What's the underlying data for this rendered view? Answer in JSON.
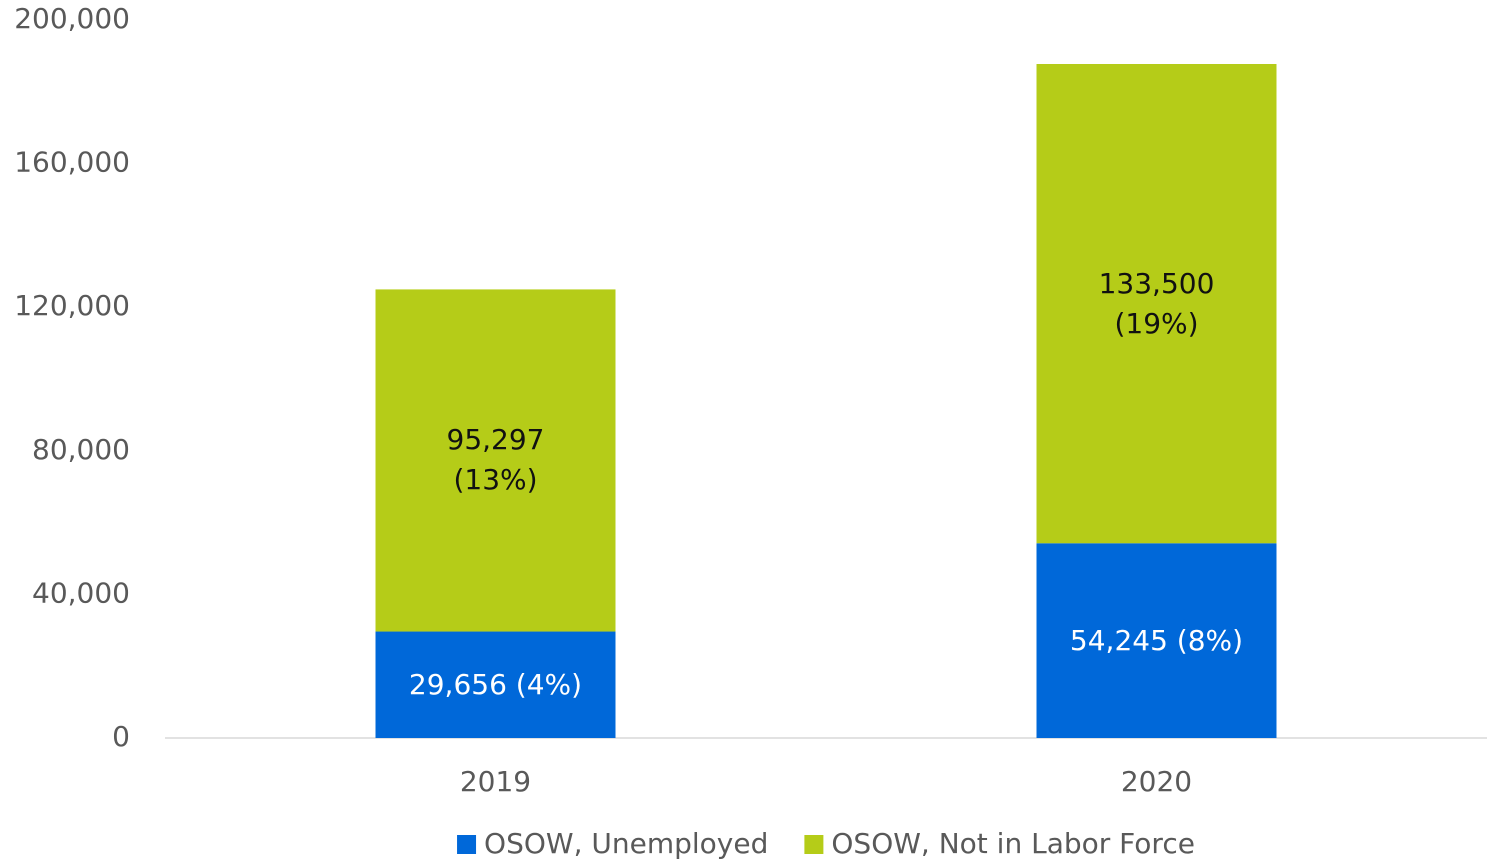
{
  "chart_data": {
    "type": "bar",
    "stacked": true,
    "categories": [
      "2019",
      "2020"
    ],
    "series": [
      {
        "name": "OSOW, Unemployed",
        "color": "#0068d9",
        "label_color": "#ffffff",
        "values": [
          29656,
          54245
        ],
        "value_labels": [
          "29,656 (4%)",
          "54,245 (8%)"
        ]
      },
      {
        "name": "OSOW, Not in Labor Force",
        "color": "#b5cc18",
        "label_color": "#111111",
        "values": [
          95297,
          133500
        ],
        "value_labels": [
          "95,297\n(13%)",
          "133,500\n(19%)"
        ]
      }
    ],
    "ylim": [
      0,
      200000
    ],
    "yticks": [
      0,
      {
        "value": 40000,
        "label": "40,000"
      },
      {
        "value": 80000,
        "label": "80,000"
      },
      {
        "value": 120000,
        "label": "120,000"
      },
      {
        "value": 160000,
        "label": "160,000"
      },
      {
        "value": 200000,
        "label": "200,000"
      }
    ],
    "grid": false,
    "legend": "bottom"
  }
}
